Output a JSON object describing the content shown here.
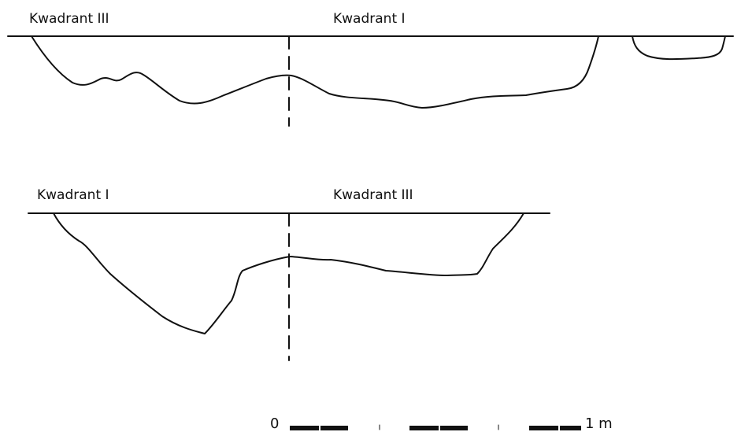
{
  "section_top": {
    "left_label": "Kwadrant III",
    "right_label": "Kwadrant I"
  },
  "section_bottom": {
    "left_label": "Kwadrant I",
    "right_label": "Kwadrant III"
  },
  "scale_bar": {
    "start_label": "0",
    "end_label": "1 m"
  },
  "colors": {
    "line": "#111111",
    "background": "#ffffff"
  }
}
